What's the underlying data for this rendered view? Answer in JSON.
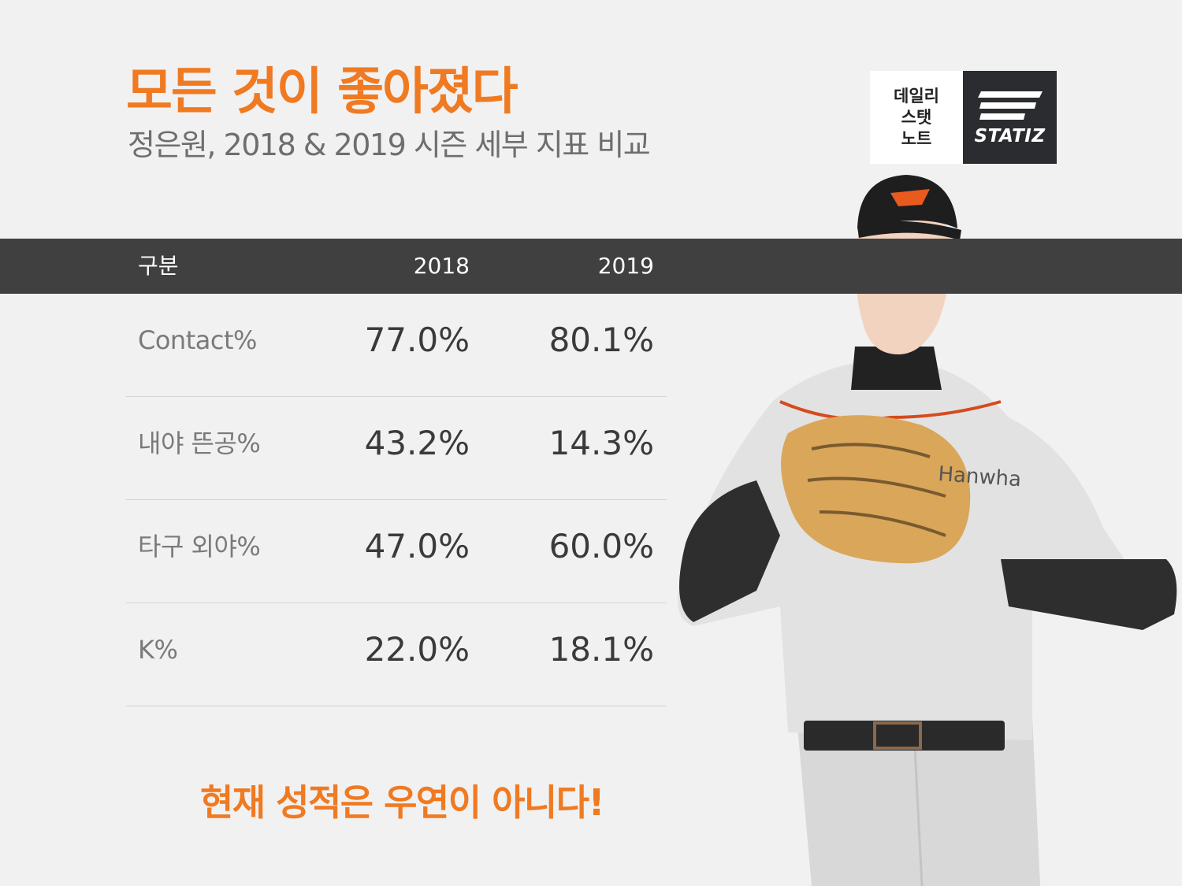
{
  "title": "모든 것이 좋아졌다",
  "subtitle": "정은원, 2018 & 2019 시즌 세부 지표 비교",
  "logo": {
    "line1": "데일리",
    "line2": "스탯",
    "line3": "노트",
    "brand": "STATIZ"
  },
  "colors": {
    "accent": "#f07a22",
    "header_bar": "#404040",
    "background": "#f1f1f1"
  },
  "chart_data": {
    "type": "table",
    "columns": [
      "구분",
      "2018",
      "2019"
    ],
    "rows": [
      {
        "label": "Contact%",
        "v2018": "77.0%",
        "v2019": "80.1%"
      },
      {
        "label": "내야 뜬공%",
        "v2018": "43.2%",
        "v2019": "14.3%"
      },
      {
        "label": "타구 외야%",
        "v2018": "47.0%",
        "v2019": "60.0%"
      },
      {
        "label": "K%",
        "v2018": "22.0%",
        "v2019": "18.1%"
      }
    ]
  },
  "footer": "현재 성적은 우연이 아니다!",
  "player_image": {
    "team_text": "Hanwha"
  }
}
